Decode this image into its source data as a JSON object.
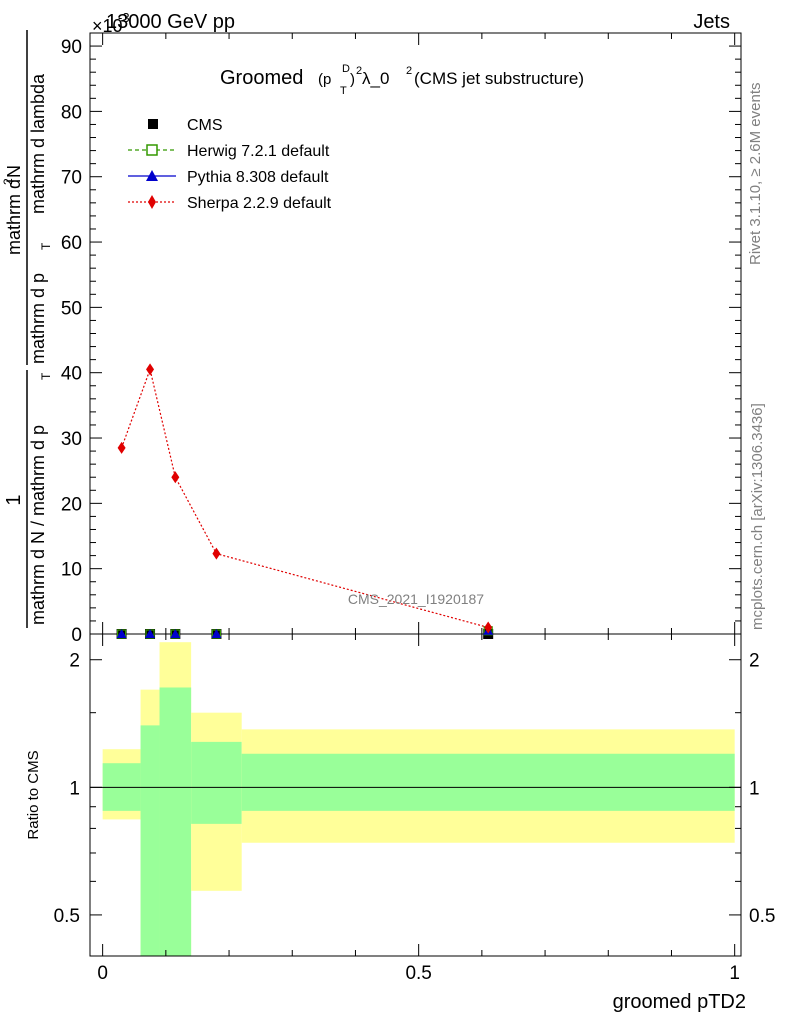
{
  "header": {
    "energy_label": "13000 GeV pp",
    "process_label": "Jets",
    "exponent_label": "×10",
    "exponent_value": "-3",
    "rivet_label": "Rivet 3.1.10, ≥ 2.6M events",
    "mcplots_label": "mcplots.cern.ch [arXiv:1306.3436]",
    "analysis_label": "CMS_2021_I1920187"
  },
  "colors": {
    "cms": "#000000",
    "herwig": "#339900",
    "pythia": "#0000cc",
    "sherpa": "#e00000",
    "band_outer": "#ffff99",
    "band_inner": "#99ff99"
  },
  "legend": {
    "items": [
      {
        "label": "CMS",
        "icon": "filled-square-icon"
      },
      {
        "label": "Herwig 7.2.1 default",
        "icon": "open-square-icon"
      },
      {
        "label": "Pythia 8.308 default",
        "icon": "triangle-icon"
      },
      {
        "label": "Sherpa 2.2.9 default",
        "icon": "diamond-icon"
      }
    ]
  },
  "chart_data": [
    {
      "type": "line",
      "title_main": "Groomed",
      "title_frac_num": "D",
      "title_frac_sub": "T",
      "title_tail": " λ_0",
      "title_suffix": " (CMS jet substructure)",
      "ylabel": "1 / (mathrm d N / mathrm d p_T) · mathrm d²N / (mathrm d p_T mathrm d lambda)",
      "ylabel_fraction_numerator": "1",
      "ylabel_fraction_denominator": "mathrm d N / mathrm d p",
      "ylabel_second_top": "mathrm d",
      "ylabel_second_sup": "2",
      "ylabel_second_n": "N",
      "ylabel_second_bottom": "mathrm d p",
      "ylabel_second_rest": "mathrm d lambda",
      "ylabel_sub_t": "T",
      "ylim": [
        0,
        92
      ],
      "yticks": [
        0,
        10,
        20,
        30,
        40,
        50,
        60,
        70,
        80,
        90
      ],
      "x": [
        0.03,
        0.075,
        0.115,
        0.18,
        0.61
      ],
      "series": [
        {
          "name": "CMS",
          "values": [
            0,
            0,
            0,
            0,
            0
          ]
        },
        {
          "name": "Herwig 7.2.1 default",
          "values": [
            0,
            0,
            0,
            0,
            0.5
          ]
        },
        {
          "name": "Pythia 8.308 default",
          "values": [
            0,
            0,
            0,
            0,
            0.5
          ]
        },
        {
          "name": "Sherpa 2.2.9 default",
          "values": [
            28.5,
            40.5,
            24,
            12.3,
            1
          ]
        }
      ]
    },
    {
      "type": "area",
      "ylabel": "Ratio to CMS",
      "xlabel": "groomed pTD2",
      "log_y": true,
      "ylim": [
        0.4,
        2.3
      ],
      "xlim": [
        -0.02,
        1.01
      ],
      "yticks": [
        0.5,
        1,
        2
      ],
      "ytick_labels": [
        "0.5",
        "1",
        "2"
      ],
      "xticks": [
        0,
        0.5,
        1
      ],
      "xtick_labels": [
        "0",
        "0.5",
        "1"
      ],
      "reference_line": 1,
      "bins": [
        {
          "lo": 0.0,
          "hi": 0.06,
          "inner": [
            0.88,
            1.14
          ],
          "outer": [
            0.84,
            1.23
          ]
        },
        {
          "lo": 0.06,
          "hi": 0.09,
          "inner": [
            0.4,
            1.4
          ],
          "outer": [
            0.4,
            1.7
          ]
        },
        {
          "lo": 0.09,
          "hi": 0.14,
          "inner": [
            0.4,
            1.72
          ],
          "outer": [
            0.4,
            2.2
          ]
        },
        {
          "lo": 0.14,
          "hi": 0.22,
          "inner": [
            0.82,
            1.28
          ],
          "outer": [
            0.57,
            1.5
          ]
        },
        {
          "lo": 0.22,
          "hi": 1.0,
          "inner": [
            0.88,
            1.2
          ],
          "outer": [
            0.74,
            1.37
          ]
        }
      ]
    }
  ]
}
